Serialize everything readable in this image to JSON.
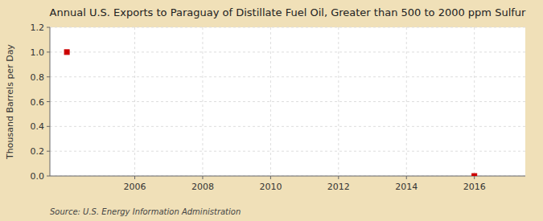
{
  "chart_data": {
    "type": "scatter",
    "title": "Annual U.S. Exports to Paraguay of Distillate Fuel Oil, Greater than 500 to 2000 ppm Sulfur",
    "y_label": "Thousand Barrels per Day",
    "source": "Source: U.S. Energy Information Administration",
    "x": [
      2004,
      2016
    ],
    "values": [
      1.0,
      0.0
    ],
    "color": "#cc0000",
    "marker": "square",
    "xlim": [
      2003.5,
      2017.5
    ],
    "ylim": [
      0.0,
      1.2
    ],
    "xticks": [
      2006,
      2008,
      2010,
      2012,
      2014,
      2016
    ],
    "yticks": [
      {
        "value": 0.0,
        "label": "0.0"
      },
      0.2,
      0.4,
      0.6,
      0.8,
      {
        "value": 1.0,
        "label": "1.0"
      },
      1.2
    ],
    "grid": true
  }
}
